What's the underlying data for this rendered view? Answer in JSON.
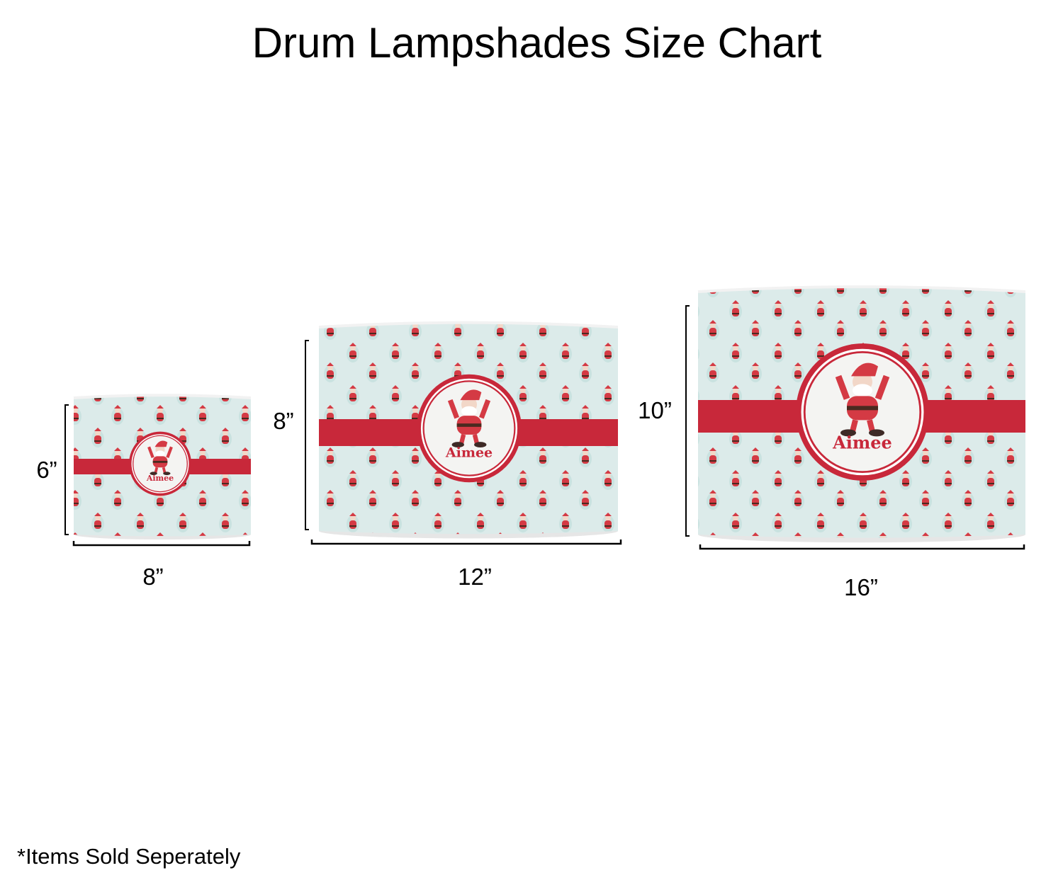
{
  "title": "Drum Lampshades Size Chart",
  "colors": {
    "band": "#c8283a",
    "background_pattern": "#dcebea",
    "medallion": "#f4f4f2"
  },
  "products": [
    {
      "size": "small",
      "height_label": "6”",
      "width_label": "8”",
      "name_text": "Aimee"
    },
    {
      "size": "medium",
      "height_label": "8”",
      "width_label": "12”",
      "name_text": "Aimee"
    },
    {
      "size": "large",
      "height_label": "10”",
      "width_label": "16”",
      "name_text": "Aimee"
    }
  ],
  "footnote": "*Items Sold Seperately"
}
